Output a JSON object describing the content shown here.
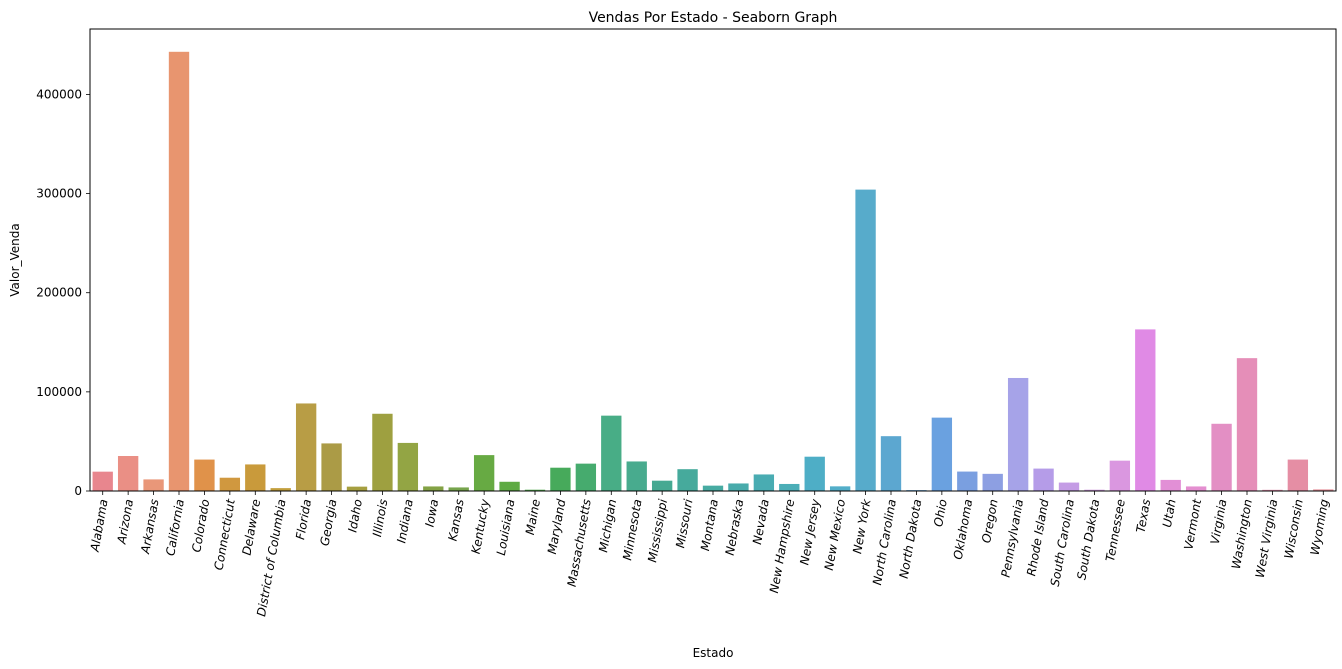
{
  "chart_data": {
    "type": "bar",
    "title": "Vendas Por Estado - Seaborn Graph",
    "xlabel": "Estado",
    "ylabel": "Valor_Venda",
    "ylim": [
      0,
      466000
    ],
    "yticks": [
      0,
      100000,
      200000,
      300000,
      400000
    ],
    "ytick_labels": [
      "0",
      "100000",
      "200000",
      "300000",
      "400000"
    ],
    "grid": false,
    "legend": "none",
    "categories": [
      "Alabama",
      "Arizona",
      "Arkansas",
      "California",
      "Colorado",
      "Connecticut",
      "Delaware",
      "District of Columbia",
      "Florida",
      "Georgia",
      "Idaho",
      "Illinois",
      "Indiana",
      "Iowa",
      "Kansas",
      "Kentucky",
      "Louisiana",
      "Maine",
      "Maryland",
      "Massachusetts",
      "Michigan",
      "Minnesota",
      "Mississippi",
      "Missouri",
      "Montana",
      "Nebraska",
      "Nevada",
      "New Hampshire",
      "New Jersey",
      "New Mexico",
      "New York",
      "North Carolina",
      "North Dakota",
      "Ohio",
      "Oklahoma",
      "Oregon",
      "Pennsylvania",
      "Rhode Island",
      "South Carolina",
      "South Dakota",
      "Tennessee",
      "Texas",
      "Utah",
      "Vermont",
      "Virginia",
      "Washington",
      "West Virginia",
      "Wisconsin",
      "Wyoming"
    ],
    "values": [
      19500,
      35300,
      11700,
      443000,
      31700,
      13400,
      26800,
      2900,
      88300,
      48000,
      4400,
      77900,
      48500,
      4600,
      3600,
      36200,
      9300,
      1300,
      23500,
      27600,
      76000,
      29800,
      10400,
      22000,
      5400,
      7600,
      16700,
      7100,
      34600,
      4700,
      304000,
      55300,
      900,
      74000,
      19600,
      17300,
      114000,
      22600,
      8500,
      1300,
      30600,
      163000,
      11200,
      4600,
      67800,
      134000,
      1200,
      31700,
      1600
    ],
    "colors": [
      "#e8868e",
      "#ea8f85",
      "#e99779",
      "#e8956f",
      "#e0924a",
      "#d0983f",
      "#c99a3b",
      "#c29f3c",
      "#b89d45",
      "#ab9b46",
      "#a69f40",
      "#9ea040",
      "#93a544",
      "#83a245",
      "#76a44c",
      "#67aa43",
      "#5eaa43",
      "#51a84d",
      "#47aa5b",
      "#46ab6e",
      "#48ad86",
      "#48ab8e",
      "#46a992",
      "#46aa9c",
      "#47aba2",
      "#48abab",
      "#49acb2",
      "#4baeb7",
      "#4eaec6",
      "#53aec9",
      "#57abcb",
      "#5ca7d0",
      "#62a3d8",
      "#6aa1e0",
      "#7a9fe0",
      "#8d9fe2",
      "#a6a3e8",
      "#b59ce8",
      "#c49ce5",
      "#d09ae2",
      "#da97e0",
      "#e08ae5",
      "#e28fd6",
      "#e48fd0",
      "#e38fc4",
      "#e58eb8",
      "#e68fae",
      "#e58ea4",
      "#e58e98"
    ]
  }
}
